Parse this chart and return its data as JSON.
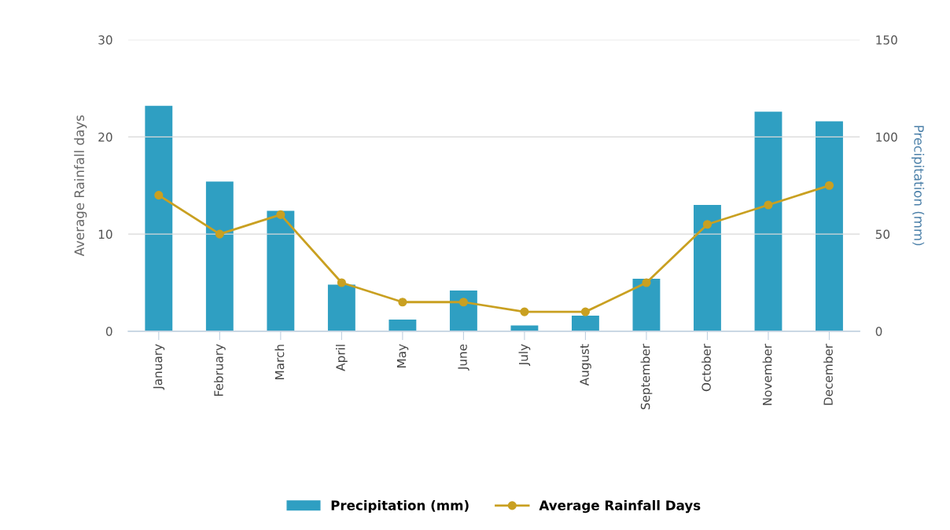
{
  "chart_data": {
    "type": "bar",
    "categories": [
      "January",
      "February",
      "March",
      "April",
      "May",
      "June",
      "July",
      "August",
      "September",
      "October",
      "November",
      "December"
    ],
    "series": [
      {
        "name": "Precipitation (mm)",
        "axis": "y2",
        "color": "#2f9fc2",
        "values": [
          116,
          77,
          62,
          24,
          6,
          21,
          3,
          8,
          27,
          65,
          113,
          108
        ]
      },
      {
        "name": "Average Rainfall Days",
        "type": "line",
        "axis": "y",
        "color": "#c9a021",
        "marker": "circle",
        "values": [
          14,
          10,
          12,
          5,
          3,
          3,
          2,
          2,
          5,
          11,
          13,
          15
        ]
      }
    ],
    "ylabel": "Average Rainfall days",
    "y2label": "Precipitation (mm)",
    "ylim": [
      0,
      30
    ],
    "yticks": [
      0,
      10,
      20,
      30
    ],
    "y2lim": [
      0,
      150
    ],
    "y2ticks": [
      0,
      50,
      100,
      150
    ],
    "grid": "y",
    "legend": "bottom"
  }
}
